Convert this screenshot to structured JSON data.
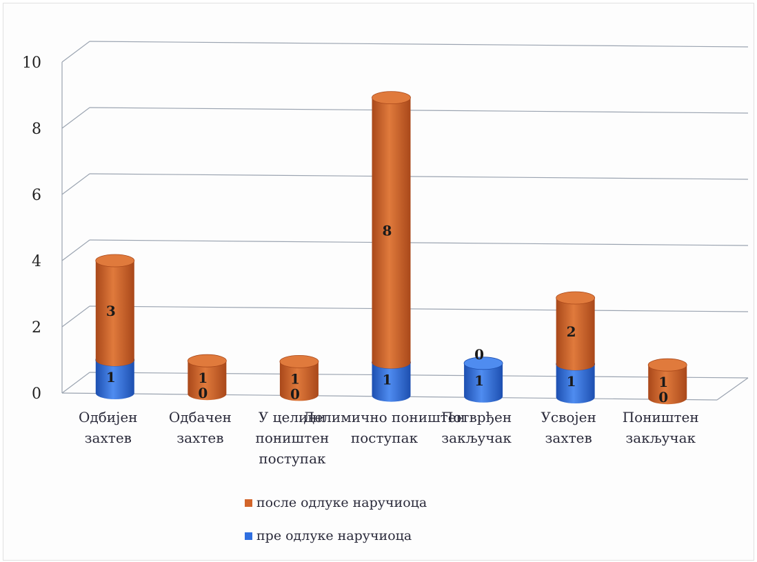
{
  "chart_data": {
    "type": "bar",
    "stacked": true,
    "style": "3d-cylinder",
    "categories": [
      "Одбијен захтев",
      "Одбачен захтев",
      "У целини поништен поступак",
      "Делимично поништен поступак",
      "Потврђен закључак",
      "Усвојен захтев",
      "Поништен закључак"
    ],
    "series": [
      {
        "name": "пре одлуке наручиоца",
        "color": "#2f6fe0",
        "values": [
          1,
          0,
          0,
          1,
          1,
          1,
          0
        ]
      },
      {
        "name": "после одлуке наручиоца",
        "color": "#d2652a",
        "values": [
          3,
          1,
          1,
          8,
          0,
          2,
          1
        ]
      }
    ],
    "ylim": [
      0,
      10
    ],
    "yticks": [
      0,
      2,
      4,
      6,
      8,
      10
    ],
    "grid": true,
    "legend_position": "bottom"
  }
}
